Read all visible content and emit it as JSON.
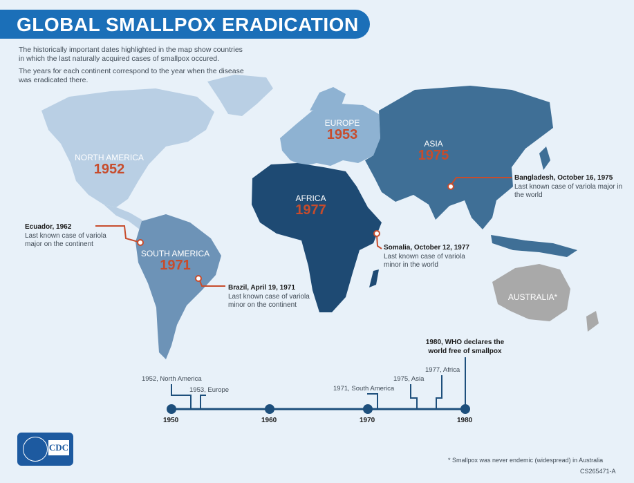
{
  "title": "GLOBAL SMALLPOX ERADICATION",
  "intro": [
    "The historically important dates highlighted in the map show countries in which the last naturally acquired cases of smallpox occured.",
    "The years for each continent correspond to the year when the disease was eradicated there."
  ],
  "regions": [
    {
      "name": "NORTH AMERICA",
      "year": "1952",
      "color": "#b9cfe4"
    },
    {
      "name": "EUROPE",
      "year": "1953",
      "color": "#8eb2d2"
    },
    {
      "name": "ASIA",
      "year": "1975",
      "color": "#3f6f96"
    },
    {
      "name": "AFRICA",
      "year": "1977",
      "color": "#1e4a73"
    },
    {
      "name": "SOUTH AMERICA",
      "year": "1971",
      "color": "#6d93b7"
    },
    {
      "name": "AUSTRALIA*",
      "year": "",
      "color": "#a9a9a9"
    }
  ],
  "callouts": [
    {
      "title": "Ecuador, 1962",
      "text": "Last known case of variola major on the continent"
    },
    {
      "title": "Brazil, April 19, 1971",
      "text": "Last known case of variola minor on the continent"
    },
    {
      "title": "Bangladesh, October 16, 1975",
      "text": "Last known case of variola major in the world"
    },
    {
      "title": "Somalia, October 12, 1977",
      "text": "Last known case of variola minor in the world"
    }
  ],
  "timeline": {
    "years": [
      "1950",
      "1960",
      "1970",
      "1980"
    ],
    "events": [
      "1952, North America",
      "1953, Europe",
      "1971, South America",
      "1975, Asia",
      "1977, Africa"
    ],
    "who": "1980, WHO declares the world free of smallpox"
  },
  "logo_text": "CDC",
  "footnote": "* Smallpox was never endemic (widespread) in Australia",
  "code": "CS265471-A",
  "accent_color": "#c74c2c",
  "title_bar_color": "#1b6fb8"
}
